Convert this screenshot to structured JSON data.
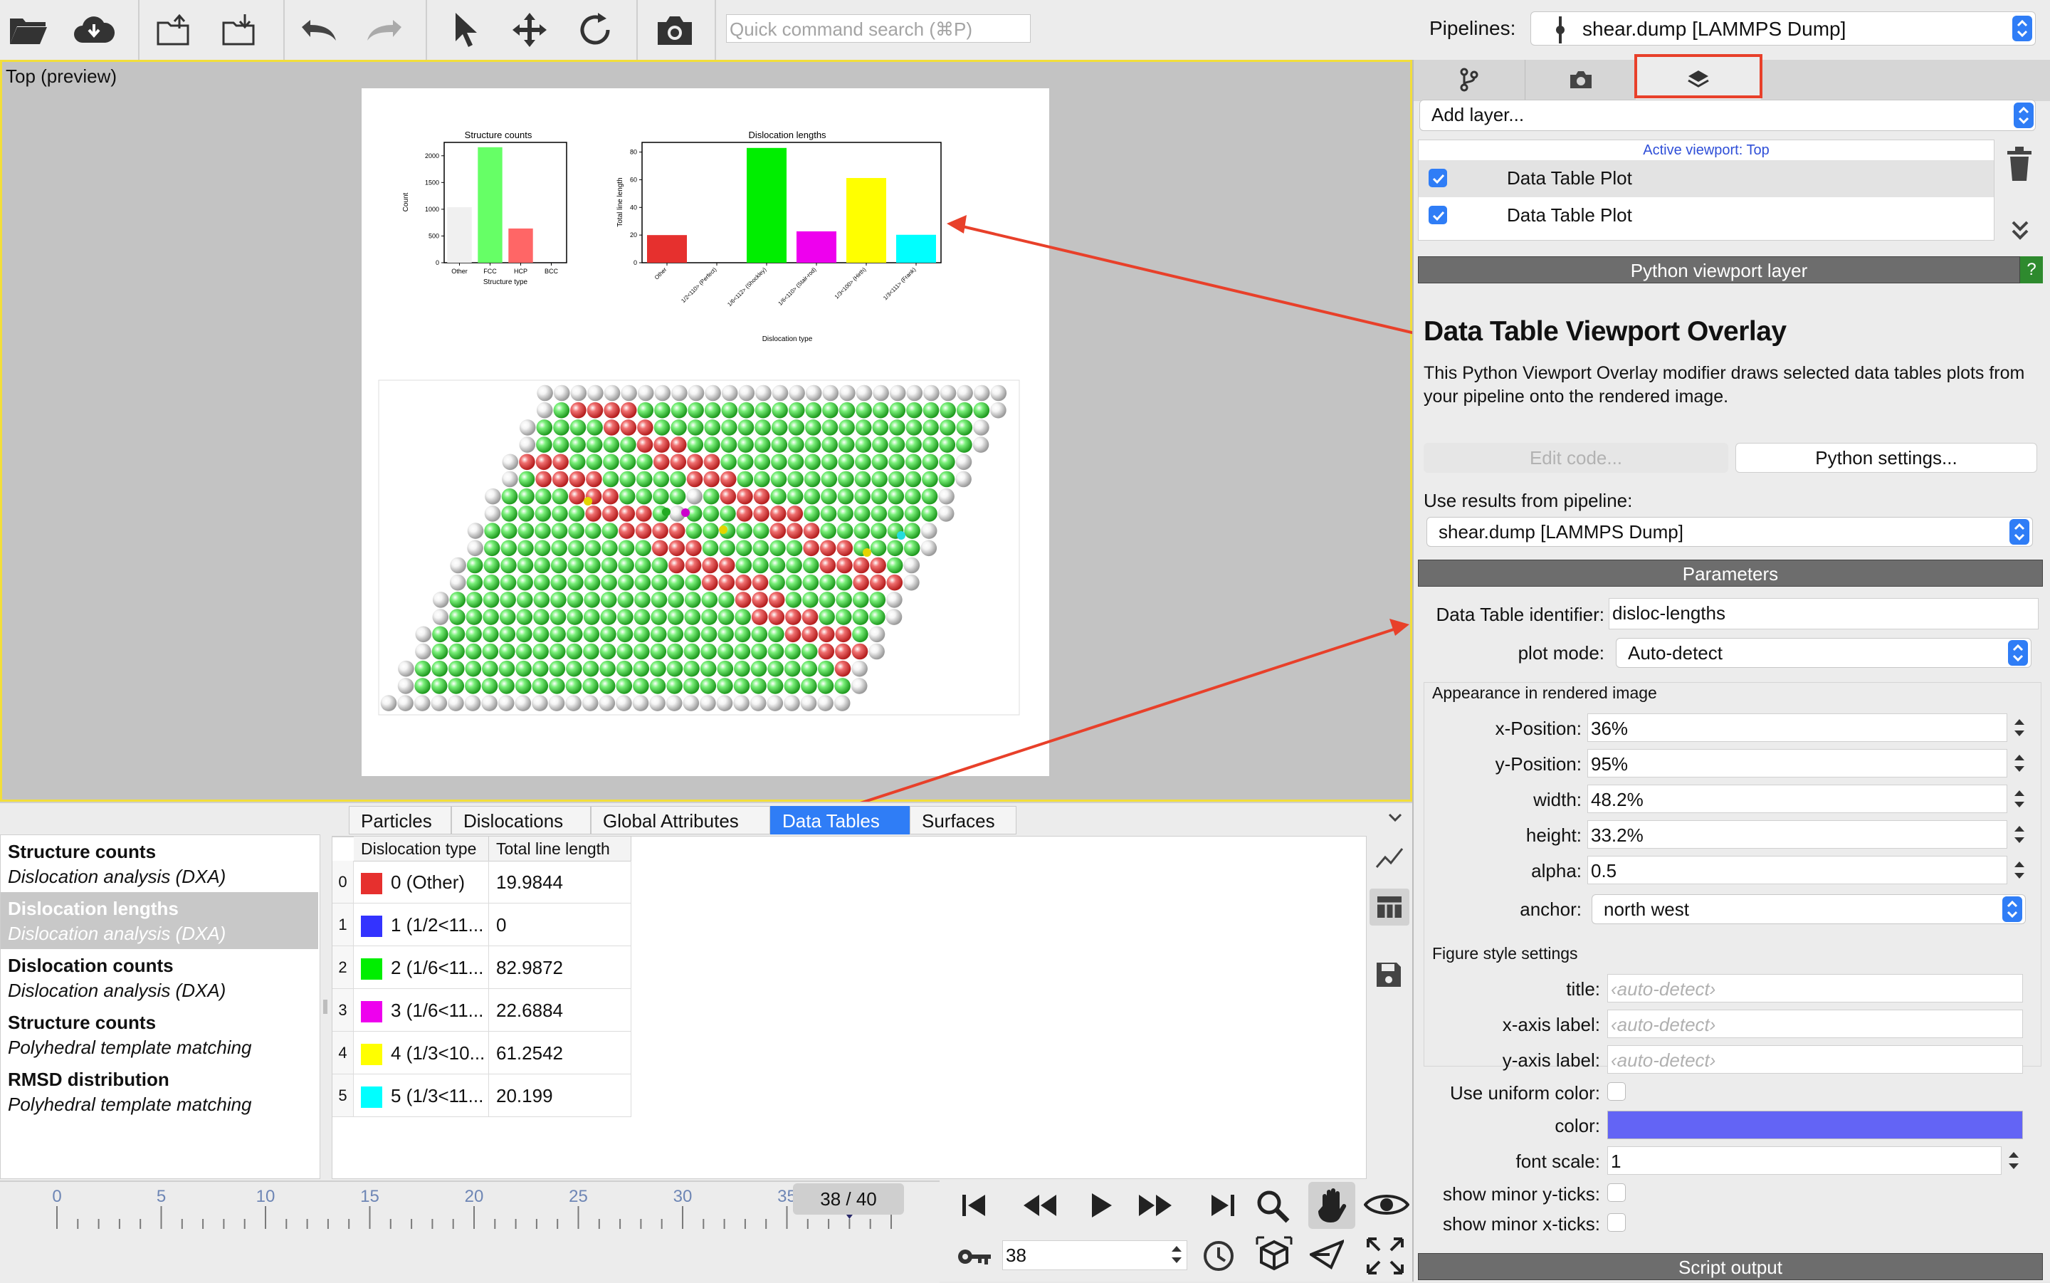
{
  "toolbar": {
    "quick_search_placeholder": "Quick command search (⌘P)",
    "pipelines_label": "Pipelines:",
    "pipeline_selected": "shear.dump [LAMMPS Dump]",
    "icons": [
      "open-folder-icon",
      "cloud-download-icon",
      "export-icon",
      "import-icon",
      "undo-icon",
      "redo-icon",
      "select-pointer-icon",
      "move-icon",
      "rotate-icon",
      "camera-icon"
    ]
  },
  "viewport": {
    "caption": "Top (preview)",
    "render": {
      "structure_chart_title": "Structure counts",
      "structure_chart_xlabel": "Structure type",
      "structure_chart_ylabel": "Count",
      "dislocation_chart_title": "Dislocation lengths",
      "dislocation_chart_xlabel": "Dislocation type",
      "dislocation_chart_ylabel": "Total line length"
    }
  },
  "chart_data": [
    {
      "type": "bar",
      "title": "Structure counts",
      "xlabel": "Structure type",
      "ylabel": "Count",
      "categories": [
        "Other",
        "FCC",
        "HCP",
        "BCC"
      ],
      "values": [
        1040,
        2160,
        640,
        0
      ],
      "colors": [
        "#f0f0f0",
        "#66ff66",
        "#ff6666",
        "#6666ff"
      ],
      "yticks": [
        0,
        500,
        1000,
        1500,
        2000
      ],
      "ylim": [
        0,
        2250
      ]
    },
    {
      "type": "bar",
      "title": "Dislocation lengths",
      "xlabel": "Dislocation type",
      "ylabel": "Total line length",
      "categories": [
        "Other",
        "1/2<110> (Perfect)",
        "1/6<112> (Shockley)",
        "1/6<110> (Stair-rod)",
        "1/3<100> (Hirth)",
        "1/3<111> (Frank)"
      ],
      "values": [
        19.9844,
        0,
        82.9872,
        22.6884,
        61.2542,
        20.199
      ],
      "colors": [
        "#e6302e",
        "#3333ff",
        "#00ee00",
        "#ee00ee",
        "#ffff00",
        "#00ffff"
      ],
      "yticks": [
        0,
        20,
        40,
        60,
        80
      ],
      "ylim": [
        0,
        87
      ]
    }
  ],
  "right_panel": {
    "add_layer_label": "Add layer...",
    "active_viewport_label": "Active viewport: Top",
    "layers": [
      {
        "label": "Data Table Plot",
        "checked": true
      },
      {
        "label": "Data Table Plot",
        "checked": true
      }
    ],
    "python_layer_header": "Python viewport layer",
    "help_label": "?",
    "modifier_title": "Data Table Viewport Overlay",
    "modifier_description": "This Python Viewport Overlay modifier draws selected data tables plots from your pipeline onto the rendered image.",
    "edit_code_label": "Edit code...",
    "python_settings_label": "Python settings...",
    "use_results_label": "Use results from pipeline:",
    "use_results_value": "shear.dump [LAMMPS Dump]",
    "parameters_header": "Parameters",
    "data_table_identifier_label": "Data Table identifier:",
    "data_table_identifier_value": "disloc-lengths",
    "plot_mode_label": "plot mode:",
    "plot_mode_value": "Auto-detect",
    "appearance_header": "Appearance in rendered image",
    "x_position_label": "x-Position:",
    "x_position_value": "36%",
    "y_position_label": "y-Position:",
    "y_position_value": "95%",
    "width_label": "width:",
    "width_value": "48.2%",
    "height_label": "height:",
    "height_value": "33.2%",
    "alpha_label": "alpha:",
    "alpha_value": "0.5",
    "anchor_label": "anchor:",
    "anchor_value": "north west",
    "figure_style_header": "Figure style settings",
    "title_label": "title:",
    "title_placeholder": "‹auto-detect›",
    "xaxis_label": "x-axis label:",
    "xaxis_placeholder": "‹auto-detect›",
    "yaxis_label": "y-axis label:",
    "yaxis_placeholder": "‹auto-detect›",
    "uniform_color_label": "Use uniform color:",
    "color_label": "color:",
    "color_value": "#6364f5",
    "font_scale_label": "font scale:",
    "font_scale_value": "1",
    "minor_y_label": "show minor y-ticks:",
    "minor_x_label": "show minor x-ticks:",
    "script_output_header": "Script output"
  },
  "data_inspector": {
    "tabs": [
      "Particles",
      "Dislocations",
      "Global Attributes",
      "Data Tables",
      "Surfaces"
    ],
    "active_tab": "Data Tables",
    "tables": [
      {
        "name": "Structure counts",
        "source": "Dislocation analysis (DXA)"
      },
      {
        "name": "Dislocation lengths",
        "source": "Dislocation analysis (DXA)"
      },
      {
        "name": "Dislocation counts",
        "source": "Dislocation analysis (DXA)"
      },
      {
        "name": "Structure counts",
        "source": "Polyhedral template matching"
      },
      {
        "name": "RMSD distribution",
        "source": "Polyhedral template matching"
      }
    ],
    "columns": [
      "Dislocation type",
      "Total line length"
    ],
    "rows": [
      {
        "index": "0",
        "color": "#e6302e",
        "type": "0 (Other)",
        "length": "19.9844"
      },
      {
        "index": "1",
        "color": "#3333ff",
        "type": "1 (1/2<11...",
        "length": "0"
      },
      {
        "index": "2",
        "color": "#00ee00",
        "type": "2 (1/6<11...",
        "length": "82.9872"
      },
      {
        "index": "3",
        "color": "#ee00ee",
        "type": "3 (1/6<11...",
        "length": "22.6884"
      },
      {
        "index": "4",
        "color": "#ffff00",
        "type": "4 (1/3<10...",
        "length": "61.2542"
      },
      {
        "index": "5",
        "color": "#00ffff",
        "type": "5 (1/3<11...",
        "length": "20.199"
      }
    ]
  },
  "timeline": {
    "tick_labels": [
      "0",
      "5",
      "10",
      "15",
      "20",
      "25",
      "30",
      "35"
    ],
    "frame_display": "38 / 40",
    "current_frame": "38",
    "current_frame_fraction": 0.95
  }
}
